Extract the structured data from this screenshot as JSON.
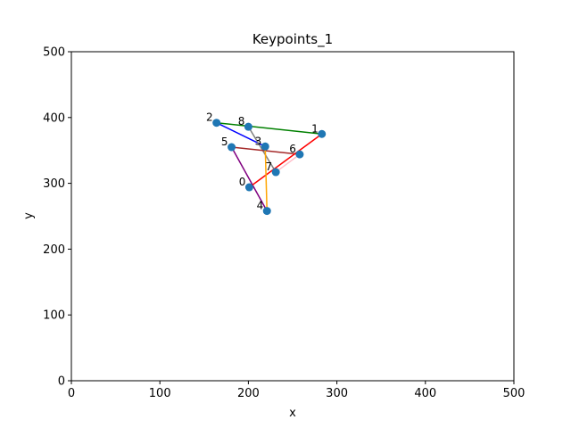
{
  "chart_data": {
    "type": "scatter",
    "title": "Keypoints_1",
    "xlabel": "x",
    "ylabel": "y",
    "xlim": [
      0,
      500
    ],
    "ylim": [
      0,
      500
    ],
    "xticks": [
      0,
      100,
      200,
      300,
      400,
      500
    ],
    "yticks": [
      0,
      100,
      200,
      300,
      400,
      500
    ],
    "grid": false,
    "point_color": "#1f77b4",
    "points": [
      {
        "label": "0",
        "x": 201,
        "y": 294
      },
      {
        "label": "1",
        "x": 283,
        "y": 375
      },
      {
        "label": "2",
        "x": 164,
        "y": 392
      },
      {
        "label": "3",
        "x": 219,
        "y": 356
      },
      {
        "label": "4",
        "x": 221,
        "y": 258
      },
      {
        "label": "5",
        "x": 181,
        "y": 355
      },
      {
        "label": "6",
        "x": 258,
        "y": 344
      },
      {
        "label": "7",
        "x": 231,
        "y": 317
      },
      {
        "label": "8",
        "x": 200,
        "y": 386
      }
    ],
    "connections": [
      {
        "from": 2,
        "to": 1,
        "color": "#008000"
      },
      {
        "from": 2,
        "to": 3,
        "color": "#0000ff"
      },
      {
        "from": 8,
        "to": 7,
        "color": "#808080"
      },
      {
        "from": 5,
        "to": 6,
        "color": "#a52a2a"
      },
      {
        "from": 5,
        "to": 4,
        "color": "#800080"
      },
      {
        "from": 0,
        "to": 1,
        "color": "#ff0000"
      },
      {
        "from": 7,
        "to": 6,
        "color": "#ffc0cb"
      },
      {
        "from": 3,
        "to": 4,
        "color": "#ffa500"
      }
    ]
  }
}
